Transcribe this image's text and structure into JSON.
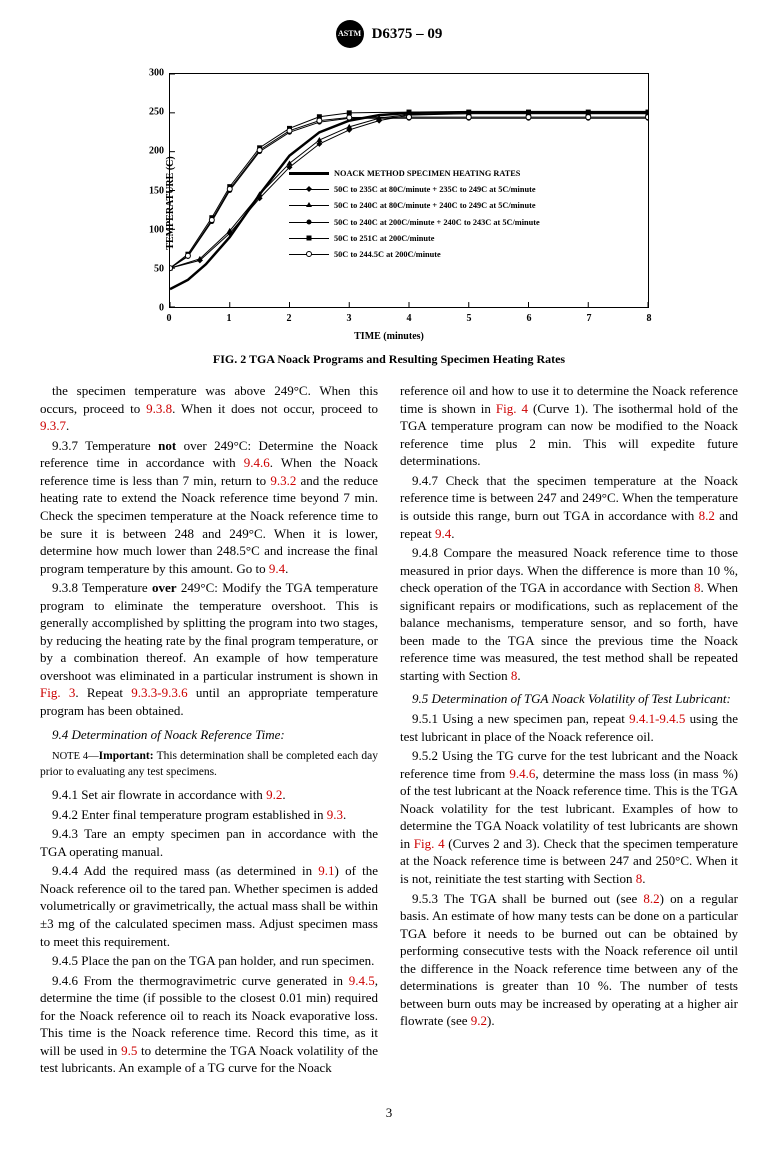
{
  "header": {
    "logo_text": "ASTM",
    "title": "D6375 – 09"
  },
  "figure": {
    "type": "line",
    "title": "FIG. 2 TGA Noack Programs and Resulting Specimen Heating Rates",
    "xlabel": "TIME (minutes)",
    "ylabel": "TEMPERATURE (C)",
    "xlim": [
      0,
      8
    ],
    "ylim": [
      0,
      300
    ],
    "xticks": [
      0,
      1,
      2,
      3,
      4,
      5,
      6,
      7,
      8
    ],
    "yticks": [
      0,
      50,
      100,
      150,
      200,
      250,
      300
    ],
    "plot_bg": "#ffffff",
    "axis_color": "#000000",
    "series": [
      {
        "label": "NOACK METHOD SPECIMEN HEATING RATES",
        "marker": "none",
        "line_width": 2.5,
        "color": "#000000",
        "data": [
          [
            0,
            23
          ],
          [
            0.3,
            35
          ],
          [
            0.6,
            55
          ],
          [
            1,
            90
          ],
          [
            1.5,
            145
          ],
          [
            2,
            195
          ],
          [
            2.5,
            225
          ],
          [
            3,
            240
          ],
          [
            3.5,
            247
          ],
          [
            4,
            250
          ],
          [
            5,
            251
          ],
          [
            6,
            251
          ],
          [
            7,
            251
          ],
          [
            8,
            251
          ]
        ]
      },
      {
        "label": "50C to 235C at 80C/minute + 235C to 249C at 5C/minute",
        "marker": "diamond",
        "line_width": 1,
        "color": "#000000",
        "data": [
          [
            0,
            50
          ],
          [
            0.5,
            60
          ],
          [
            1,
            95
          ],
          [
            1.5,
            140
          ],
          [
            2,
            180
          ],
          [
            2.5,
            210
          ],
          [
            3,
            228
          ],
          [
            3.5,
            240
          ],
          [
            4,
            247
          ],
          [
            5,
            249
          ],
          [
            6,
            249
          ],
          [
            7,
            249
          ],
          [
            8,
            249
          ]
        ]
      },
      {
        "label": "50C to 240C at 80C/minute + 240C to 249C at 5C/minute",
        "marker": "triangle",
        "line_width": 1,
        "color": "#000000",
        "data": [
          [
            0,
            50
          ],
          [
            0.5,
            62
          ],
          [
            1,
            98
          ],
          [
            1.5,
            145
          ],
          [
            2,
            185
          ],
          [
            2.5,
            215
          ],
          [
            3,
            232
          ],
          [
            3.5,
            243
          ],
          [
            4,
            248
          ],
          [
            5,
            249
          ],
          [
            6,
            249
          ],
          [
            7,
            249
          ],
          [
            8,
            249
          ]
        ]
      },
      {
        "label": "50C to 240C at 200C/minute + 240C to 243C at 5C/minute",
        "marker": "circle",
        "line_width": 1,
        "color": "#000000",
        "data": [
          [
            0,
            50
          ],
          [
            0.3,
            65
          ],
          [
            0.7,
            110
          ],
          [
            1,
            150
          ],
          [
            1.5,
            200
          ],
          [
            2,
            225
          ],
          [
            2.5,
            238
          ],
          [
            3,
            243
          ],
          [
            4,
            243
          ],
          [
            5,
            243
          ],
          [
            6,
            243
          ],
          [
            7,
            243
          ],
          [
            8,
            243
          ]
        ]
      },
      {
        "label": "50C to 251C at 200C/minute",
        "marker": "square",
        "line_width": 1,
        "color": "#000000",
        "data": [
          [
            0,
            50
          ],
          [
            0.3,
            68
          ],
          [
            0.7,
            115
          ],
          [
            1,
            155
          ],
          [
            1.5,
            205
          ],
          [
            2,
            230
          ],
          [
            2.5,
            245
          ],
          [
            3,
            250
          ],
          [
            4,
            251
          ],
          [
            5,
            251
          ],
          [
            6,
            251
          ],
          [
            7,
            251
          ],
          [
            8,
            251
          ]
        ]
      },
      {
        "label": "50C to 244.5C at 200C/minute",
        "marker": "circle-open",
        "line_width": 1,
        "color": "#000000",
        "data": [
          [
            0,
            50
          ],
          [
            0.3,
            66
          ],
          [
            0.7,
            112
          ],
          [
            1,
            152
          ],
          [
            1.5,
            202
          ],
          [
            2,
            227
          ],
          [
            2.5,
            240
          ],
          [
            3,
            244
          ],
          [
            4,
            244.5
          ],
          [
            5,
            244.5
          ],
          [
            6,
            244.5
          ],
          [
            7,
            244.5
          ],
          [
            8,
            244.5
          ]
        ]
      }
    ],
    "series_fontsize": 8.3,
    "axis_fontsize": 10
  },
  "col1": {
    "p1a": "the specimen temperature was above 249°C. When this occurs, proceed to ",
    "p1b": ". When it does not occur, proceed to ",
    "p1c": ".",
    "r1a": "9.3.8",
    "r1b": "9.3.7",
    "p2a": "9.3.7 Temperature ",
    "p2b": "not",
    "p2c": " over 249°C: Determine the Noack reference time in accordance with ",
    "p2d": ". When the Noack reference time is less than 7 min, return to ",
    "p2e": " and the reduce heating rate to extend the Noack reference time beyond 7 min. Check the specimen temperature at the Noack reference time to be sure it is between 248 and 249°C. When it is lower, determine how much lower than 248.5°C and increase the final program temperature by this amount. Go to ",
    "p2f": ".",
    "r2a": "9.4.6",
    "r2b": "9.3.2",
    "r2c": "9.4",
    "p3a": "9.3.8 Temperature ",
    "p3b": "over",
    "p3c": " 249°C: Modify the TGA temperature program to eliminate the temperature overshoot. This is generally accomplished by splitting the program into two stages, by reducing the heating rate by the final program temperature, or by a combination thereof. An example of how temperature overshoot was eliminated in a particular instrument is shown in ",
    "p3d": ". Repeat ",
    "p3e": " until an appropriate temperature program has been obtained.",
    "r3a": "Fig. 3",
    "r3b": "9.3.3-9.3.6",
    "s94": "9.4 Determination of Noack Reference Time:",
    "note4a": "NOTE 4—",
    "note4b": "Important:",
    "note4c": " This determination shall be completed each day prior to evaluating any test specimens.",
    "p941a": "9.4.1 Set air flowrate in accordance with ",
    "r941": "9.2",
    "p941b": ".",
    "p942a": "9.4.2 Enter final temperature program established in ",
    "r942": "9.3",
    "p942b": ".",
    "p943": "9.4.3 Tare an empty specimen pan in accordance with the TGA operating manual.",
    "p944a": "9.4.4 Add the required mass (as determined in ",
    "r944": "9.1",
    "p944b": ") of the Noack reference oil to the tared pan. Whether specimen is added volumetrically or gravimetrically, the actual mass shall be within ±3 mg of the calculated specimen mass. Adjust specimen mass to meet this requirement.",
    "p945": "9.4.5 Place the pan on the TGA pan holder, and run specimen.",
    "p946a": "9.4.6 From the thermogravimetric curve generated in ",
    "r946a": "9.4.5",
    "p946b": ", determine the time (if possible to the closest 0.01 min) required for the Noack reference oil to reach its Noack evaporative loss. This time is the Noack reference time. Record this time, as it will be used in ",
    "r946b": "9.5",
    "p946c": " to determine the TGA Noack volatility of the test lubricants. An example of a TG curve for the Noack"
  },
  "col2": {
    "p1a": "reference oil and how to use it to determine the Noack reference time is shown in ",
    "r1a": "Fig. 4",
    "p1b": " (Curve 1). The isothermal hold of the TGA temperature program can now be modified to the Noack reference time plus 2 min. This will expedite future determinations.",
    "p947a": "9.4.7 Check that the specimen temperature at the Noack reference time is between 247 and 249°C. When the temperature is outside this range, burn out TGA in accordance with ",
    "r947a": "8.2",
    "p947b": " and repeat ",
    "r947b": "9.4",
    "p947c": ".",
    "p948a": "9.4.8 Compare the measured Noack reference time to those measured in prior days. When the difference is more than 10 %, check operation of the TGA in accordance with Section ",
    "r948a": "8",
    "p948b": ". When significant repairs or modifications, such as replacement of the balance mechanisms, temperature sensor, and so forth, have been made to the TGA since the previous time the Noack reference time was measured, the test method shall be repeated starting with Section ",
    "r948b": "8",
    "p948c": ".",
    "s95": "9.5 Determination of TGA Noack Volatility of Test Lubricant:",
    "p951a": "9.5.1 Using a new specimen pan, repeat ",
    "r951": "9.4.1-9.4.5",
    "p951b": " using the test lubricant in place of the Noack reference oil.",
    "p952a": "9.5.2 Using the TG curve for the test lubricant and the Noack reference time from ",
    "r952a": "9.4.6",
    "p952b": ", determine the mass loss (in mass %) of the test lubricant at the Noack reference time. This is the TGA Noack volatility for the test lubricant. Examples of how to determine the TGA Noack volatility of test lubricants are shown in ",
    "r952b": "Fig. 4",
    "p952c": " (Curves 2 and 3). Check that the specimen temperature at the Noack reference time is between 247 and 250°C. When it is not, reinitiate the test starting with Section ",
    "r952c": "8",
    "p952d": ".",
    "p953a": "9.5.3 The TGA shall be burned out (see ",
    "r953a": "8.2",
    "p953b": ") on a regular basis. An estimate of how many tests can be done on a particular TGA before it needs to be burned out can be obtained by performing consecutive tests with the Noack reference oil until the difference in the Noack reference time between any of the determinations is greater than 10 %. The number of tests between burn outs may be increased by operating at a higher air flowrate (see ",
    "r953b": "9.2",
    "p953c": ")."
  },
  "page_number": "3"
}
